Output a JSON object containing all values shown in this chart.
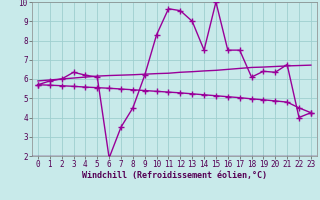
{
  "x": [
    0,
    1,
    2,
    3,
    4,
    5,
    6,
    7,
    8,
    9,
    10,
    11,
    12,
    13,
    14,
    15,
    16,
    17,
    18,
    19,
    20,
    21,
    22,
    23
  ],
  "windchill": [
    5.7,
    5.9,
    6.0,
    6.35,
    6.2,
    6.1,
    1.9,
    3.5,
    4.5,
    6.2,
    8.3,
    9.65,
    9.55,
    9.0,
    7.5,
    10.0,
    7.5,
    7.5,
    6.1,
    6.4,
    6.35,
    6.75,
    4.0,
    4.25
  ],
  "trend_upper": [
    5.9,
    5.95,
    6.0,
    6.05,
    6.1,
    6.15,
    6.18,
    6.2,
    6.22,
    6.25,
    6.28,
    6.3,
    6.35,
    6.38,
    6.42,
    6.45,
    6.5,
    6.55,
    6.6,
    6.62,
    6.65,
    6.68,
    6.7,
    6.72
  ],
  "trend_lower": [
    5.7,
    5.68,
    5.65,
    5.62,
    5.58,
    5.55,
    5.52,
    5.48,
    5.44,
    5.4,
    5.36,
    5.32,
    5.28,
    5.23,
    5.18,
    5.13,
    5.08,
    5.03,
    4.97,
    4.92,
    4.86,
    4.8,
    4.5,
    4.25
  ],
  "ylim": [
    2,
    10
  ],
  "xlim_min": -0.5,
  "xlim_max": 23.5,
  "yticks": [
    2,
    3,
    4,
    5,
    6,
    7,
    8,
    9,
    10
  ],
  "xticks": [
    0,
    1,
    2,
    3,
    4,
    5,
    6,
    7,
    8,
    9,
    10,
    11,
    12,
    13,
    14,
    15,
    16,
    17,
    18,
    19,
    20,
    21,
    22,
    23
  ],
  "xlabel": "Windchill (Refroidissement éolien,°C)",
  "bg_color": "#c8eaea",
  "grid_color": "#9fcfcf",
  "line_color": "#990099",
  "line_width": 1.0,
  "marker": "+",
  "marker_size": 4,
  "tick_font_size": 5.5,
  "xlabel_font_size": 6.0
}
